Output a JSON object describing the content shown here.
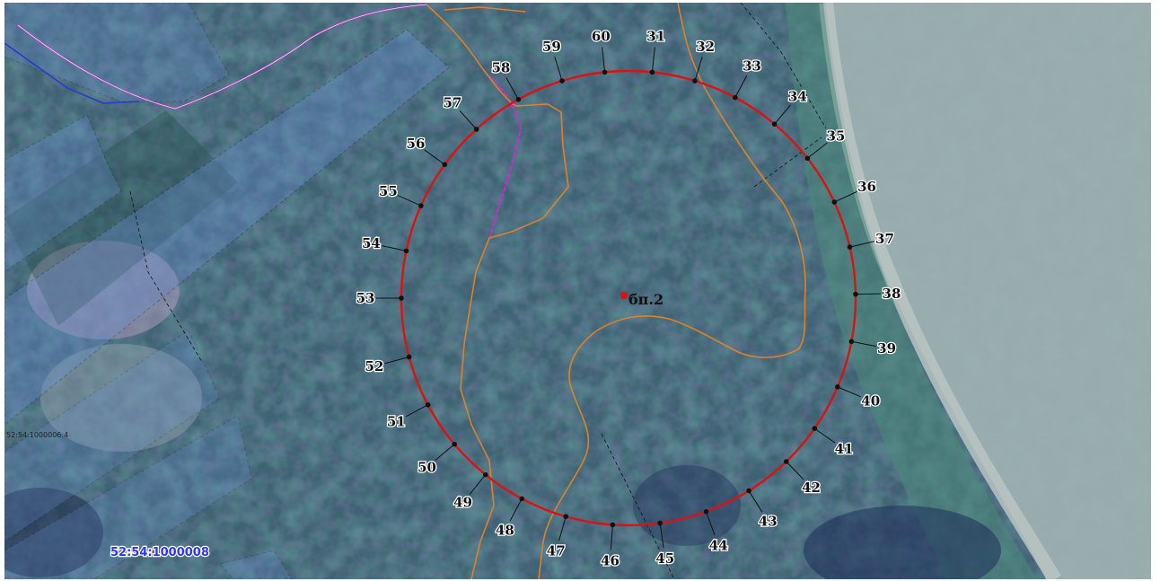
{
  "map": {
    "colors": {
      "circle": "#e01010",
      "orange_boundary": "#e0802a",
      "magenta_boundary": "#d02ad0",
      "blue_line": "#2a3acc",
      "dashed": "#111111",
      "road": "#a8b4b4"
    },
    "circle_points": [
      {
        "label": "31",
        "angle": -84
      },
      {
        "label": "32",
        "angle": -73
      },
      {
        "label": "33",
        "angle": -62
      },
      {
        "label": "34",
        "angle": -50
      },
      {
        "label": "35",
        "angle": -38
      },
      {
        "label": "36",
        "angle": -25
      },
      {
        "label": "37",
        "angle": -13
      },
      {
        "label": "38",
        "angle": -1
      },
      {
        "label": "39",
        "angle": 11
      },
      {
        "label": "40",
        "angle": 23
      },
      {
        "label": "41",
        "angle": 35
      },
      {
        "label": "42",
        "angle": 46
      },
      {
        "label": "43",
        "angle": 58
      },
      {
        "label": "44",
        "angle": 70
      },
      {
        "label": "45",
        "angle": 82
      },
      {
        "label": "46",
        "angle": 94
      },
      {
        "label": "47",
        "angle": 106
      },
      {
        "label": "48",
        "angle": 118
      },
      {
        "label": "49",
        "angle": 129
      },
      {
        "label": "50",
        "angle": 140
      },
      {
        "label": "51",
        "angle": 152
      },
      {
        "label": "52",
        "angle": 165
      },
      {
        "label": "53",
        "angle": 180
      },
      {
        "label": "54",
        "angle": 192
      },
      {
        "label": "55",
        "angle": 204
      },
      {
        "label": "56",
        "angle": 216
      },
      {
        "label": "57",
        "angle": 228
      },
      {
        "label": "58",
        "angle": 241
      },
      {
        "label": "59",
        "angle": 253
      },
      {
        "label": "60",
        "angle": 264
      }
    ],
    "center_label": "бп.2",
    "cadastral_label": "52:54:1000008",
    "small_label": "52:54:1000006:4"
  }
}
